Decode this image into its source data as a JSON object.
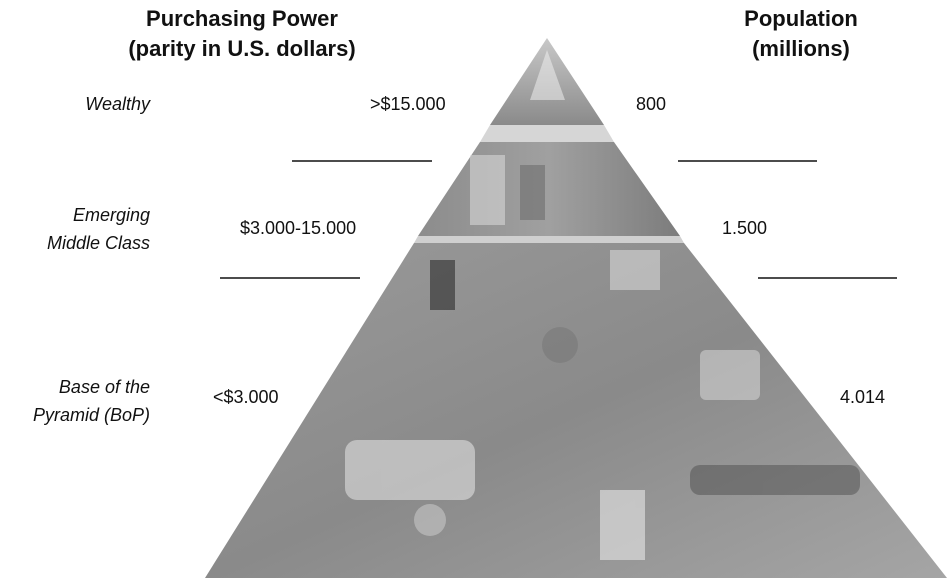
{
  "headers": {
    "purchasing_power": [
      "Purchasing Power",
      "(parity in U.S. dollars)"
    ],
    "population": [
      "Population",
      "(millions)"
    ]
  },
  "tiers": [
    {
      "label": [
        "Wealthy"
      ],
      "purchasing_power": ">$15.000",
      "population": "800"
    },
    {
      "label": [
        "Emerging",
        "Middle Class"
      ],
      "purchasing_power": "$3.000-15.000",
      "population": "1.500"
    },
    {
      "label": [
        "Base of the",
        "Pyramid (BoP)"
      ],
      "purchasing_power": "<$3.000",
      "population": "4.014"
    }
  ]
}
